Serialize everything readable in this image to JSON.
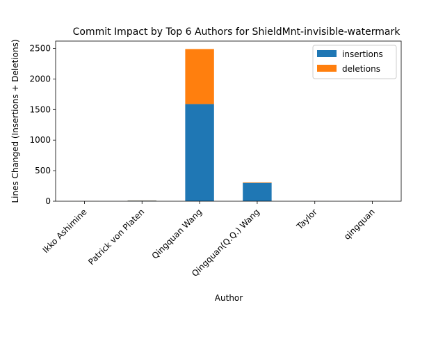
{
  "chart_data": {
    "type": "bar",
    "stacked": true,
    "title": "Commit Impact by Top 6 Authors for ShieldMnt-invisible-watermark",
    "xlabel": "Author",
    "ylabel": "Lines Changed (Insertions + Deletions)",
    "categories": [
      "Ikko Ashimine",
      "Patrick von Platen",
      "Qingquan Wang",
      "Qingquan(Q.Q.) Wang",
      "Taylor",
      "qingquan"
    ],
    "series": [
      {
        "name": "insertions",
        "color": "#1f77b4",
        "values": [
          1,
          10,
          1590,
          300,
          1,
          1
        ]
      },
      {
        "name": "deletions",
        "color": "#ff7f0e",
        "values": [
          1,
          3,
          900,
          8,
          1,
          1
        ]
      }
    ],
    "ylim": [
      0,
      2620
    ],
    "yticks": [
      0,
      500,
      1000,
      1500,
      2000,
      2500
    ],
    "grid": false,
    "legend_position": "top-right"
  }
}
